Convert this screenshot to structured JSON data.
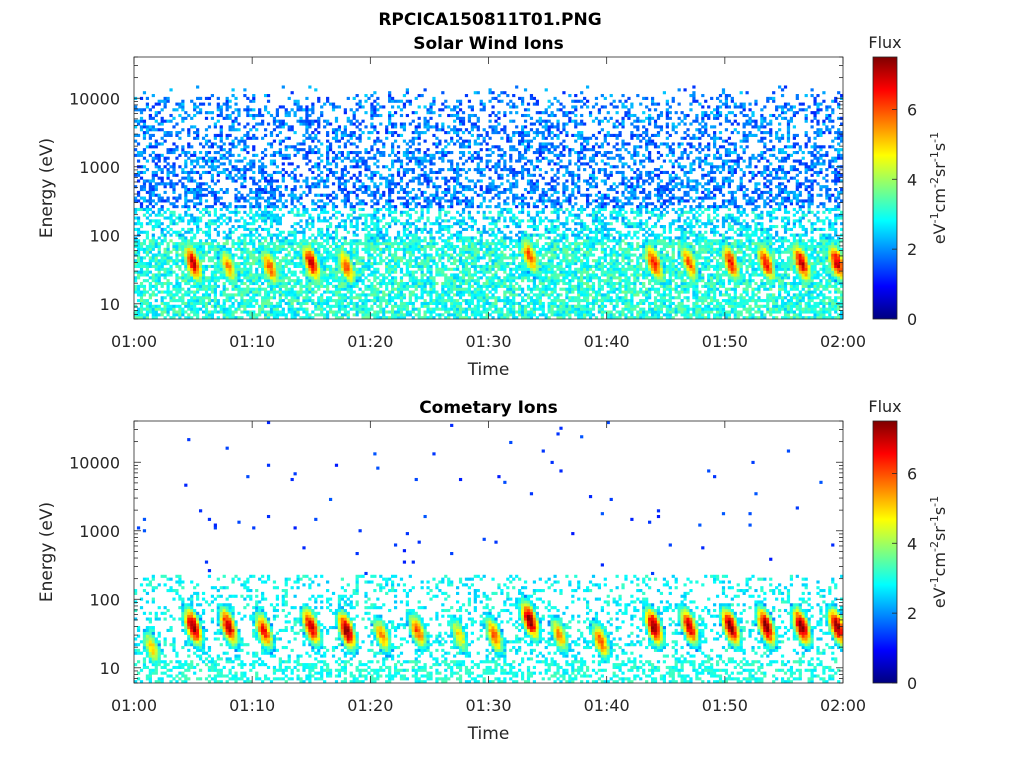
{
  "figure_title": "RPCICA150811T01.PNG",
  "colormap": [
    "#00007f",
    "#0000ff",
    "#007fff",
    "#00ffff",
    "#7fff7f",
    "#ffff00",
    "#ff7f00",
    "#ff0000",
    "#7f0000"
  ],
  "chart_data": [
    {
      "type": "heatmap",
      "title": "Solar Wind Ions",
      "xlabel": "Time",
      "ylabel": "Energy (eV)",
      "x_ticks": [
        "01:00",
        "01:10",
        "01:20",
        "01:30",
        "01:40",
        "01:50",
        "02:00"
      ],
      "x_tick_minutes": [
        0,
        10,
        20,
        30,
        40,
        50,
        60
      ],
      "xlim_minutes": [
        0,
        60
      ],
      "yscale": "log",
      "y_ticks": [
        "10",
        "100",
        "1000",
        "10000"
      ],
      "y_tick_values": [
        10,
        100,
        1000,
        10000
      ],
      "ylim": [
        6,
        40000
      ],
      "colorbar": {
        "title": "Flux",
        "label": "eV-1cm-2sr-1s-1",
        "ticks": [
          "0",
          "2",
          "4",
          "6"
        ],
        "tick_values": [
          0,
          2,
          4,
          6
        ],
        "range": [
          0,
          7.5
        ]
      },
      "bursts": [
        {
          "minute": 5.0,
          "energy": 40,
          "peak": 7.0
        },
        {
          "minute": 8.0,
          "energy": 35,
          "peak": 5.5
        },
        {
          "minute": 11.5,
          "energy": 35,
          "peak": 6.0
        },
        {
          "minute": 15.0,
          "energy": 40,
          "peak": 7.0
        },
        {
          "minute": 18.0,
          "energy": 35,
          "peak": 6.0
        },
        {
          "minute": 33.5,
          "energy": 50,
          "peak": 6.0
        },
        {
          "minute": 44.0,
          "energy": 40,
          "peak": 6.5
        },
        {
          "minute": 47.0,
          "energy": 40,
          "peak": 6.0
        },
        {
          "minute": 50.5,
          "energy": 40,
          "peak": 6.5
        },
        {
          "minute": 53.5,
          "energy": 40,
          "peak": 6.5
        },
        {
          "minute": 56.5,
          "energy": 40,
          "peak": 7.0
        },
        {
          "minute": 59.5,
          "energy": 40,
          "peak": 7.0
        }
      ]
    },
    {
      "type": "heatmap",
      "title": "Cometary Ions",
      "xlabel": "Time",
      "ylabel": "Energy (eV)",
      "x_ticks": [
        "01:00",
        "01:10",
        "01:20",
        "01:30",
        "01:40",
        "01:50",
        "02:00"
      ],
      "x_tick_minutes": [
        0,
        10,
        20,
        30,
        40,
        50,
        60
      ],
      "xlim_minutes": [
        0,
        60
      ],
      "yscale": "log",
      "y_ticks": [
        "10",
        "100",
        "1000",
        "10000"
      ],
      "y_tick_values": [
        10,
        100,
        1000,
        10000
      ],
      "ylim": [
        6,
        40000
      ],
      "colorbar": {
        "title": "Flux",
        "label": "eV-1cm-2sr-1s-1",
        "ticks": [
          "0",
          "2",
          "4",
          "6"
        ],
        "tick_values": [
          0,
          2,
          4,
          6
        ],
        "range": [
          0,
          7.5
        ]
      },
      "bursts": [
        {
          "minute": 1.5,
          "energy": 20,
          "peak": 5.0
        },
        {
          "minute": 5.0,
          "energy": 40,
          "peak": 7.5
        },
        {
          "minute": 8.0,
          "energy": 40,
          "peak": 7.0
        },
        {
          "minute": 11.0,
          "energy": 35,
          "peak": 6.5
        },
        {
          "minute": 15.0,
          "energy": 40,
          "peak": 7.0
        },
        {
          "minute": 18.0,
          "energy": 35,
          "peak": 7.5
        },
        {
          "minute": 21.0,
          "energy": 30,
          "peak": 5.5
        },
        {
          "minute": 24.0,
          "energy": 35,
          "peak": 6.0
        },
        {
          "minute": 27.5,
          "energy": 30,
          "peak": 5.0
        },
        {
          "minute": 30.5,
          "energy": 30,
          "peak": 6.0
        },
        {
          "minute": 33.5,
          "energy": 50,
          "peak": 7.5
        },
        {
          "minute": 36.0,
          "energy": 30,
          "peak": 5.5
        },
        {
          "minute": 39.5,
          "energy": 25,
          "peak": 6.0
        },
        {
          "minute": 44.0,
          "energy": 40,
          "peak": 7.5
        },
        {
          "minute": 47.0,
          "energy": 40,
          "peak": 7.0
        },
        {
          "minute": 50.5,
          "energy": 40,
          "peak": 7.5
        },
        {
          "minute": 53.5,
          "energy": 40,
          "peak": 7.5
        },
        {
          "minute": 56.5,
          "energy": 40,
          "peak": 7.5
        },
        {
          "minute": 59.5,
          "energy": 40,
          "peak": 7.5
        }
      ]
    }
  ]
}
